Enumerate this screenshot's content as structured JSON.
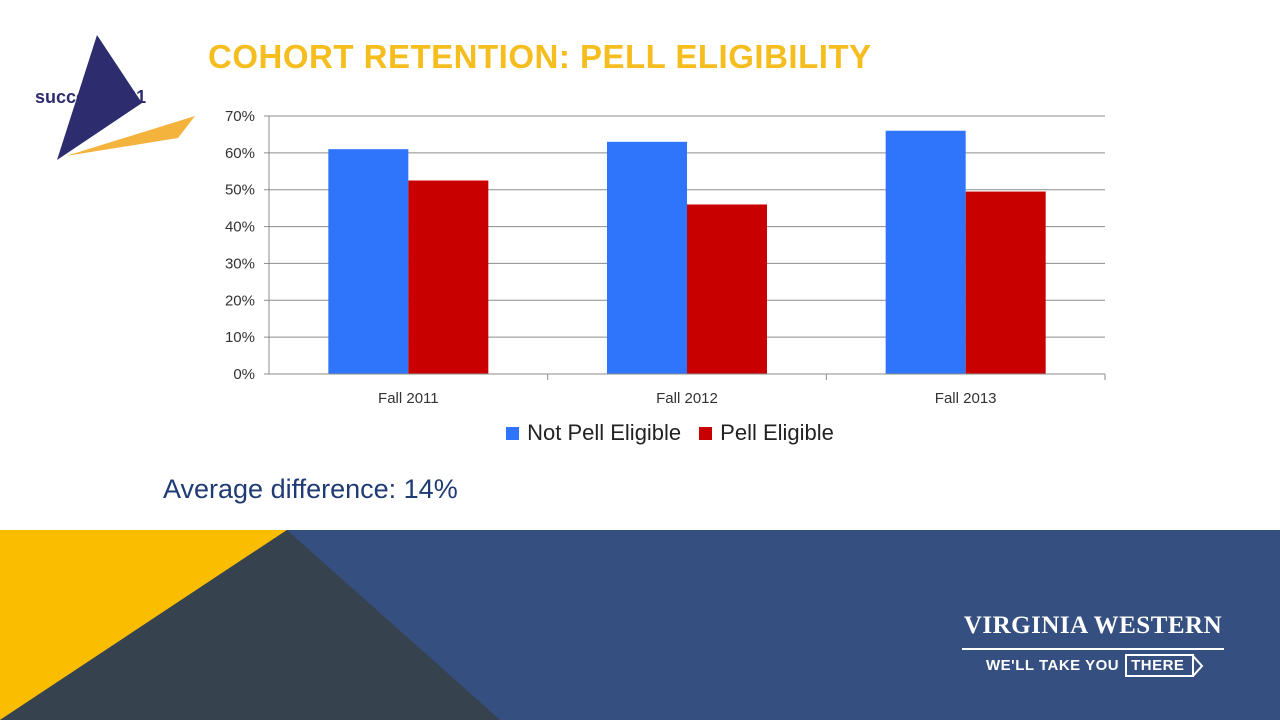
{
  "slide": {
    "title": "COHORT RETENTION:  PELL ELIGIBILITY",
    "average_text": "Average difference:  14%"
  },
  "logo": {
    "text": "success2021"
  },
  "brand": {
    "name": "VIRGINIA WESTERN",
    "tagline": "WE'LL TAKE YOU",
    "tagline_box": "THERE"
  },
  "colors": {
    "title": "#f5be1e",
    "not_pell": "#2f75fb",
    "pell": "#c80000",
    "footer_blue": "#344f80",
    "footer_yellow": "#fbbd00",
    "footer_dark": "#36424e",
    "gridline": "#8c8c8c"
  },
  "chart_data": {
    "type": "bar",
    "categories": [
      "Fall 2011",
      "Fall 2012",
      "Fall 2013"
    ],
    "series": [
      {
        "name": "Not Pell Eligible",
        "values": [
          61,
          63,
          66
        ],
        "color": "#2f75fb"
      },
      {
        "name": "Pell Eligible",
        "values": [
          52.5,
          46,
          49.5
        ],
        "color": "#c80000"
      }
    ],
    "ylim": [
      0,
      70
    ],
    "yticks": [
      "0%",
      "10%",
      "20%",
      "30%",
      "40%",
      "50%",
      "60%",
      "70%"
    ],
    "grid": true,
    "legend": "bottom"
  }
}
